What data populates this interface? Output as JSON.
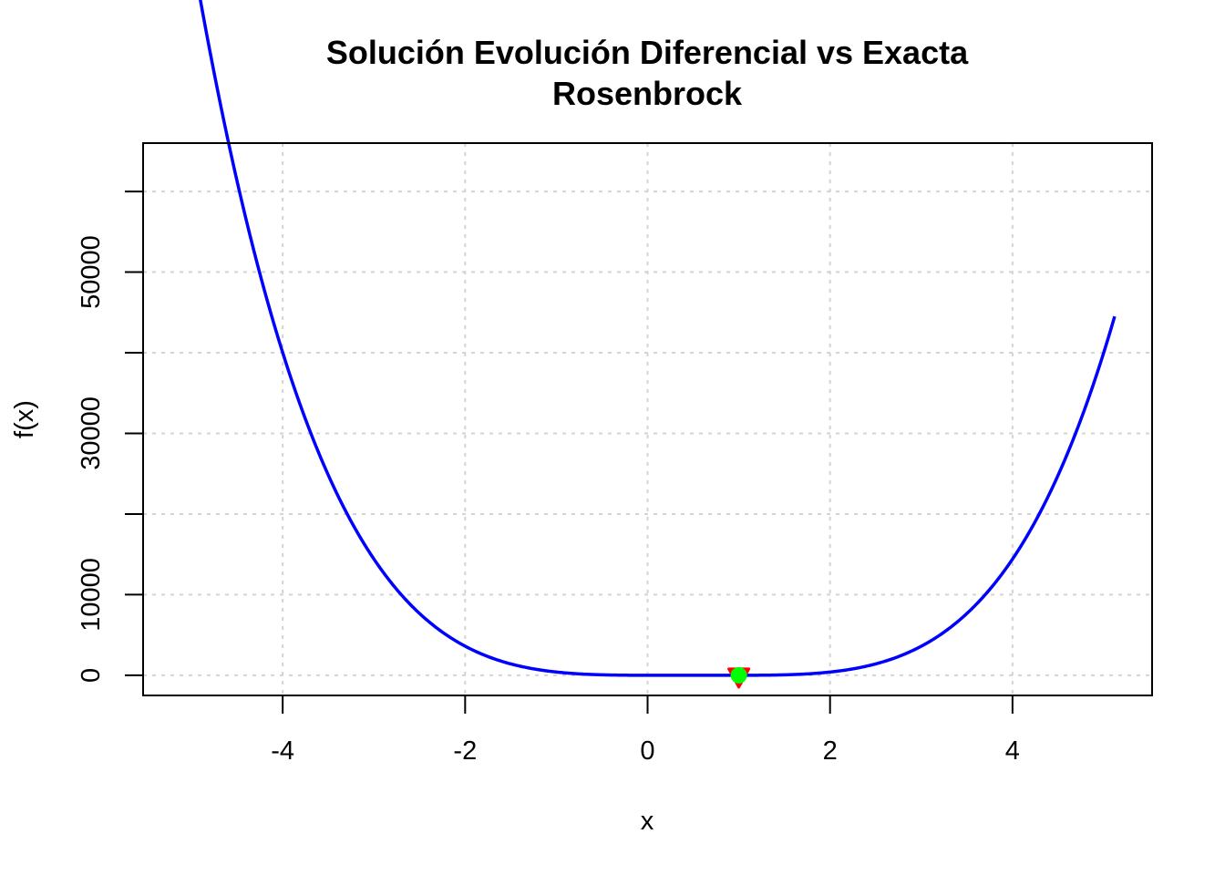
{
  "chart_data": {
    "type": "line",
    "title": "Solución Evolución Diferencial vs Exacta",
    "subtitle": "Rosenbrock",
    "xlabel": "x",
    "ylabel": "f(x)",
    "xlim": [
      -5.53,
      5.53
    ],
    "ylim": [
      -2500,
      66000
    ],
    "x_ticks": [
      -4,
      -2,
      0,
      2,
      4
    ],
    "x_tick_labels": [
      "-4",
      "-2",
      "0",
      "2",
      "4"
    ],
    "y_ticks": [
      0,
      10000,
      20000,
      30000,
      40000,
      50000,
      60000
    ],
    "y_tick_labels": [
      "0",
      "10000",
      "",
      "30000",
      "",
      "50000",
      ""
    ],
    "grid": true,
    "series": [
      {
        "function": "100*(x^2 - x)^2 + (1 - x)^2",
        "x_range": [
          -5.12,
          5.12
        ],
        "color": "#0000ff"
      }
    ],
    "points": [
      {
        "x": 1,
        "y": 0,
        "marker": "triangle-down",
        "color": "#ff0000"
      },
      {
        "x": 1,
        "y": 0,
        "marker": "circle",
        "color": "#00ff00"
      }
    ]
  }
}
